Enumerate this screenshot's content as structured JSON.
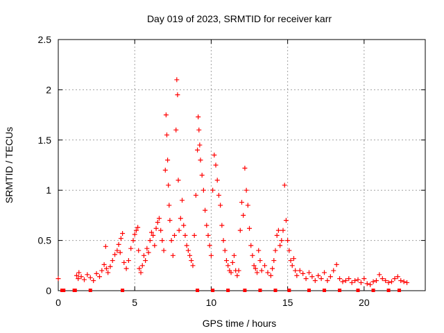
{
  "chart_data": {
    "type": "scatter",
    "title": "Day 019 of 2023, SRMTID for receiver karr",
    "xlabel": "GPS time / hours",
    "ylabel": "SRMTID / TECUs",
    "xlim": [
      0,
      24
    ],
    "ylim": [
      0,
      2.5
    ],
    "x_ticks": [
      0,
      5,
      10,
      15,
      20
    ],
    "x_tick_labels": [
      "0",
      "5",
      "10",
      "15",
      "20"
    ],
    "y_ticks": [
      0,
      0.5,
      1,
      1.5,
      2,
      2.5
    ],
    "y_tick_labels": [
      "0",
      "0.5",
      "1",
      "1.5",
      "2",
      "2.5"
    ],
    "grid": true,
    "marker": "plus",
    "color": "#ff0000",
    "series": [
      {
        "name": "SRMTID",
        "x": [
          0.0,
          0.25,
          0.35,
          1.05,
          1.2,
          1.3,
          1.35,
          1.5,
          1.7,
          1.9,
          2.1,
          2.3,
          2.5,
          2.7,
          2.85,
          3.0,
          3.1,
          3.15,
          3.25,
          3.4,
          3.55,
          3.7,
          3.85,
          3.95,
          4.05,
          4.1,
          4.2,
          4.3,
          4.45,
          4.6,
          4.75,
          4.9,
          5.0,
          5.1,
          5.2,
          5.25,
          5.3,
          5.4,
          5.5,
          5.6,
          5.7,
          5.8,
          5.9,
          6.0,
          6.1,
          6.2,
          6.3,
          6.4,
          6.5,
          6.6,
          6.7,
          6.8,
          6.9,
          7.0,
          7.05,
          7.1,
          7.15,
          7.2,
          7.25,
          7.3,
          7.4,
          7.5,
          7.6,
          7.7,
          7.75,
          7.8,
          7.85,
          7.9,
          8.0,
          8.1,
          8.2,
          8.3,
          8.4,
          8.5,
          8.6,
          8.7,
          8.8,
          8.9,
          9.0,
          9.1,
          9.15,
          9.2,
          9.25,
          9.3,
          9.4,
          9.5,
          9.6,
          9.7,
          9.8,
          9.9,
          10.0,
          10.1,
          10.2,
          10.3,
          10.4,
          10.5,
          10.6,
          10.7,
          10.8,
          10.9,
          11.0,
          11.1,
          11.2,
          11.3,
          11.4,
          11.5,
          11.6,
          11.7,
          11.8,
          11.9,
          12.0,
          12.1,
          12.2,
          12.3,
          12.4,
          12.5,
          12.6,
          12.7,
          12.8,
          12.9,
          13.0,
          13.1,
          13.2,
          13.3,
          13.5,
          13.7,
          13.9,
          14.0,
          14.1,
          14.2,
          14.3,
          14.4,
          14.5,
          14.6,
          14.7,
          14.8,
          14.9,
          15.0,
          15.1,
          15.2,
          15.3,
          15.4,
          15.5,
          15.6,
          15.8,
          16.0,
          16.2,
          16.4,
          16.6,
          16.8,
          17.0,
          17.2,
          17.4,
          17.6,
          17.8,
          18.0,
          18.2,
          18.4,
          18.6,
          18.8,
          19.0,
          19.2,
          19.4,
          19.6,
          19.8,
          20.0,
          20.2,
          20.4,
          20.6,
          20.8,
          21.0,
          21.2,
          21.4,
          21.6,
          21.8,
          22.0,
          22.2,
          22.4,
          22.6,
          22.8,
          1.1,
          2.1,
          4.2,
          9.1,
          10.1,
          11.1,
          12.2,
          13.2,
          14.2,
          15.1,
          16.4,
          17.4,
          18.4,
          19.6,
          20.6,
          21.6,
          22.3
        ],
        "y": [
          0.12,
          0.0,
          0.0,
          0.0,
          0.15,
          0.12,
          0.18,
          0.14,
          0.11,
          0.16,
          0.13,
          0.1,
          0.17,
          0.14,
          0.2,
          0.26,
          0.44,
          0.22,
          0.18,
          0.24,
          0.3,
          0.36,
          0.4,
          0.46,
          0.38,
          0.52,
          0.57,
          0.28,
          0.22,
          0.3,
          0.42,
          0.5,
          0.56,
          0.6,
          0.63,
          0.4,
          0.22,
          0.18,
          0.25,
          0.35,
          0.3,
          0.42,
          0.38,
          0.5,
          0.58,
          0.55,
          0.45,
          0.62,
          0.68,
          0.72,
          0.6,
          0.5,
          0.4,
          1.2,
          1.75,
          1.55,
          1.3,
          1.05,
          0.85,
          0.7,
          0.5,
          0.35,
          0.55,
          1.6,
          2.1,
          1.95,
          1.1,
          0.6,
          0.72,
          0.9,
          0.65,
          0.55,
          0.45,
          0.4,
          0.35,
          0.3,
          0.25,
          0.55,
          0.95,
          1.4,
          1.73,
          1.6,
          1.45,
          1.3,
          1.15,
          1.0,
          0.8,
          0.65,
          0.55,
          0.45,
          0.35,
          1.0,
          1.35,
          1.25,
          1.1,
          0.95,
          0.85,
          0.65,
          0.5,
          0.4,
          0.3,
          0.25,
          0.2,
          0.18,
          0.28,
          0.35,
          0.2,
          0.15,
          0.2,
          0.6,
          0.88,
          0.75,
          1.22,
          1.0,
          0.85,
          0.62,
          0.45,
          0.35,
          0.25,
          0.22,
          0.18,
          0.4,
          0.3,
          0.2,
          0.25,
          0.18,
          0.15,
          0.22,
          0.3,
          0.4,
          0.55,
          0.6,
          0.45,
          0.5,
          0.6,
          1.05,
          0.7,
          0.5,
          0.4,
          0.3,
          0.25,
          0.32,
          0.2,
          0.15,
          0.2,
          0.17,
          0.12,
          0.18,
          0.14,
          0.1,
          0.15,
          0.12,
          0.18,
          0.1,
          0.14,
          0.2,
          0.26,
          0.12,
          0.09,
          0.1,
          0.12,
          0.08,
          0.1,
          0.11,
          0.08,
          0.12,
          0.07,
          0.06,
          0.09,
          0.1,
          0.16,
          0.12,
          0.1,
          0.08,
          0.09,
          0.12,
          0.14,
          0.1,
          0.09,
          0.08,
          0.0,
          0.0,
          0.0,
          0.0,
          0.0,
          0.0,
          0.0,
          0.0,
          0.0,
          0.0,
          0.0,
          0.0,
          0.0,
          0.0,
          0.0,
          0.0,
          0.0
        ]
      }
    ]
  }
}
